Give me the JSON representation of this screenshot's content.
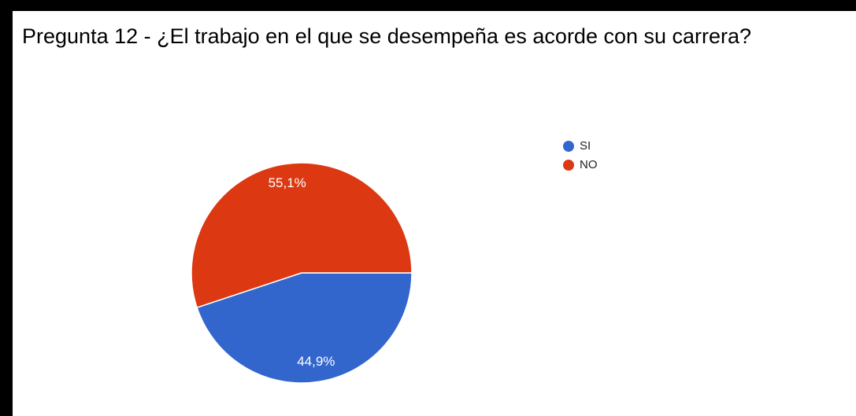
{
  "chart_data": {
    "type": "pie",
    "title": "Pregunta 12 - ¿El trabajo en el que se desempeña es acorde con su carrera?",
    "slices": [
      {
        "name": "SI",
        "value": 44.9,
        "label": "44,9%",
        "color": "#3366cc"
      },
      {
        "name": "NO",
        "value": 55.1,
        "label": "55,1%",
        "color": "#dc3912"
      }
    ],
    "legend": {
      "position": "right",
      "entries": [
        "SI",
        "NO"
      ]
    }
  }
}
